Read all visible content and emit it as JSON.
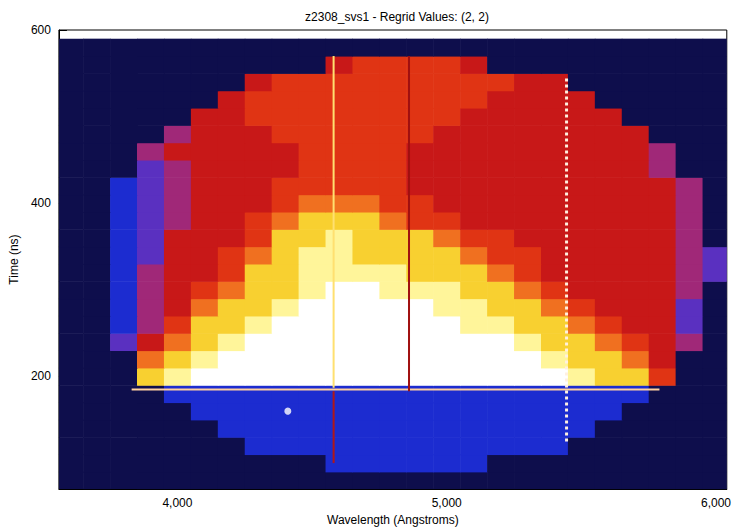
{
  "chart_data": {
    "type": "heatmap",
    "title": "z2308_svs1 - Regrid Values: (2, 2)",
    "x_label": "Wavelength (Angstroms)",
    "y_label": "Time (ns)",
    "xlim": [
      3560,
      6040
    ],
    "ylim": [
      70,
      600
    ],
    "xticks": [
      4000,
      5000,
      6000
    ],
    "yticks": [
      200,
      400,
      600
    ],
    "grid": false,
    "x": [
      3600,
      3700,
      3800,
      3900,
      4000,
      4100,
      4200,
      4300,
      4400,
      4500,
      4600,
      4700,
      4800,
      4900,
      5000,
      5100,
      5200,
      5300,
      5400,
      5500,
      5600,
      5700,
      5800,
      5900,
      6000
    ],
    "y": [
      80,
      100,
      120,
      140,
      160,
      180,
      200,
      220,
      240,
      260,
      280,
      300,
      320,
      340,
      360,
      380,
      400,
      420,
      440,
      460,
      480,
      500,
      520,
      540,
      560,
      580
    ],
    "cells": [
      [
        0,
        0,
        0,
        0,
        0,
        0,
        0,
        0,
        0,
        0,
        0,
        0,
        0,
        0,
        0,
        0,
        0,
        0,
        0,
        0,
        0,
        0,
        0,
        0,
        0
      ],
      [
        0,
        0,
        0,
        0,
        0,
        0,
        0,
        0,
        0,
        0,
        1,
        1,
        1,
        1,
        1,
        1,
        0,
        0,
        0,
        0,
        0,
        0,
        0,
        0,
        0
      ],
      [
        0,
        0,
        0,
        0,
        0,
        0,
        0,
        1,
        1,
        1,
        1,
        1,
        1,
        1,
        1,
        1,
        1,
        1,
        1,
        0,
        0,
        0,
        0,
        0,
        0
      ],
      [
        0,
        0,
        0,
        0,
        0,
        0,
        1,
        1,
        1,
        1,
        1,
        1,
        1,
        1,
        1,
        1,
        1,
        1,
        1,
        1,
        0,
        0,
        0,
        0,
        0
      ],
      [
        0,
        0,
        0,
        0,
        0,
        1,
        1,
        1,
        1,
        1,
        1,
        1,
        1,
        1,
        1,
        1,
        1,
        1,
        1,
        1,
        1,
        0,
        0,
        0,
        0
      ],
      [
        0,
        0,
        0,
        0,
        1,
        1,
        1,
        1,
        1,
        1,
        1,
        1,
        1,
        1,
        1,
        1,
        1,
        1,
        1,
        1,
        1,
        1,
        0,
        0,
        0
      ],
      [
        0,
        0,
        0,
        7,
        8,
        9,
        9,
        9,
        9,
        9,
        9,
        9,
        9,
        9,
        9,
        9,
        9,
        9,
        9,
        8,
        7,
        7,
        5,
        0,
        0
      ],
      [
        0,
        0,
        0,
        6,
        7,
        8,
        9,
        9,
        9,
        9,
        9,
        9,
        9,
        9,
        9,
        9,
        9,
        9,
        8,
        7,
        7,
        6,
        4,
        0,
        0
      ],
      [
        0,
        0,
        2,
        4,
        6,
        7,
        8,
        9,
        9,
        9,
        9,
        9,
        9,
        9,
        9,
        9,
        9,
        8,
        7,
        7,
        6,
        5,
        4,
        3,
        0
      ],
      [
        0,
        0,
        1,
        3,
        5,
        7,
        7,
        8,
        9,
        9,
        9,
        9,
        9,
        9,
        9,
        8,
        8,
        7,
        7,
        6,
        5,
        4,
        4,
        2,
        0
      ],
      [
        0,
        0,
        1,
        3,
        4,
        6,
        7,
        7,
        8,
        9,
        9,
        9,
        9,
        9,
        8,
        8,
        7,
        7,
        6,
        5,
        4,
        4,
        4,
        2,
        0
      ],
      [
        0,
        0,
        1,
        3,
        4,
        5,
        6,
        7,
        7,
        8,
        9,
        9,
        8,
        8,
        8,
        7,
        7,
        6,
        5,
        4,
        4,
        4,
        4,
        3,
        0
      ],
      [
        0,
        0,
        1,
        3,
        4,
        4,
        5,
        7,
        7,
        8,
        8,
        8,
        8,
        7,
        7,
        7,
        6,
        5,
        4,
        4,
        4,
        4,
        4,
        3,
        2
      ],
      [
        0,
        0,
        1,
        2,
        4,
        4,
        5,
        6,
        7,
        8,
        8,
        7,
        7,
        7,
        7,
        6,
        5,
        5,
        4,
        4,
        4,
        4,
        4,
        3,
        2
      ],
      [
        0,
        0,
        1,
        2,
        4,
        4,
        4,
        5,
        7,
        7,
        8,
        7,
        7,
        7,
        6,
        5,
        5,
        4,
        4,
        4,
        4,
        4,
        4,
        3,
        0
      ],
      [
        0,
        0,
        1,
        2,
        3,
        4,
        4,
        5,
        6,
        7,
        7,
        7,
        6,
        5,
        5,
        4,
        4,
        4,
        4,
        4,
        4,
        4,
        4,
        3,
        0
      ],
      [
        0,
        0,
        1,
        2,
        3,
        4,
        4,
        4,
        5,
        6,
        6,
        6,
        5,
        5,
        4,
        4,
        4,
        4,
        4,
        4,
        4,
        4,
        4,
        3,
        0
      ],
      [
        0,
        0,
        1,
        2,
        3,
        4,
        4,
        4,
        5,
        5,
        5,
        5,
        5,
        4,
        4,
        4,
        4,
        4,
        4,
        4,
        4,
        4,
        4,
        3,
        0
      ],
      [
        0,
        0,
        0,
        2,
        3,
        4,
        4,
        4,
        4,
        5,
        5,
        5,
        5,
        4,
        4,
        4,
        4,
        4,
        4,
        4,
        4,
        4,
        3,
        0,
        0
      ],
      [
        0,
        0,
        0,
        3,
        4,
        4,
        4,
        4,
        4,
        5,
        5,
        5,
        5,
        4,
        4,
        4,
        4,
        4,
        4,
        4,
        4,
        4,
        3,
        0,
        0
      ],
      [
        0,
        0,
        0,
        0,
        3,
        4,
        4,
        4,
        5,
        5,
        5,
        5,
        5,
        5,
        4,
        4,
        4,
        4,
        4,
        4,
        4,
        4,
        0,
        0,
        0
      ],
      [
        0,
        0,
        0,
        0,
        0,
        4,
        4,
        5,
        5,
        5,
        5,
        5,
        5,
        5,
        5,
        4,
        4,
        4,
        4,
        4,
        4,
        0,
        0,
        0,
        0
      ],
      [
        0,
        0,
        0,
        0,
        0,
        0,
        4,
        5,
        5,
        5,
        5,
        5,
        5,
        5,
        5,
        5,
        4,
        4,
        4,
        4,
        0,
        0,
        0,
        0,
        0
      ],
      [
        0,
        0,
        0,
        0,
        0,
        0,
        0,
        4,
        5,
        5,
        5,
        5,
        5,
        5,
        5,
        5,
        5,
        4,
        4,
        0,
        0,
        0,
        0,
        0,
        0
      ],
      [
        0,
        0,
        0,
        0,
        0,
        0,
        0,
        0,
        0,
        0,
        4,
        5,
        5,
        5,
        5,
        4,
        0,
        0,
        0,
        0,
        0,
        0,
        0,
        0,
        0
      ],
      [
        0,
        0,
        0,
        0,
        0,
        0,
        0,
        0,
        0,
        0,
        0,
        0,
        0,
        0,
        0,
        0,
        0,
        0,
        0,
        0,
        0,
        0,
        0,
        0,
        0
      ]
    ],
    "lines": [
      {
        "x": [
          3830,
          5790
        ],
        "y": [
          185,
          185
        ],
        "color": "#ffd0a0",
        "line_style": "solid"
      },
      {
        "x": [
          4580,
          4580
        ],
        "y": [
          100,
          183
        ],
        "color": "#b01818",
        "line_style": "solid"
      },
      {
        "x": [
          4580,
          4580
        ],
        "y": [
          187,
          570
        ],
        "color": "#ffe070",
        "line_style": "solid"
      },
      {
        "x": [
          4860,
          4860
        ],
        "y": [
          183,
          570
        ],
        "color": "#a01010",
        "line_style": "solid"
      },
      {
        "x": [
          5445,
          5445
        ],
        "y": [
          125,
          545
        ],
        "color": "#fff0e0",
        "line_style": "dotted"
      }
    ],
    "points": [
      {
        "x": 4410,
        "y": 160,
        "color": "#ffffff"
      }
    ]
  }
}
